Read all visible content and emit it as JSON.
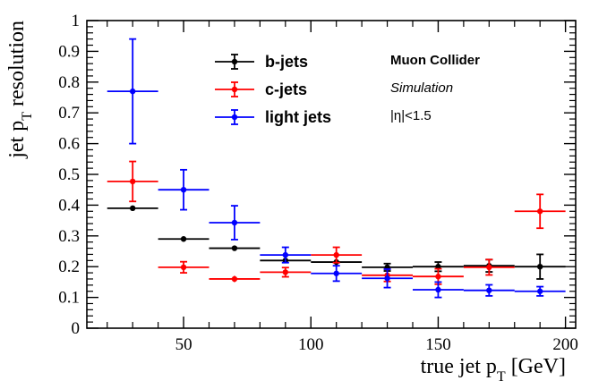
{
  "chart_data": {
    "type": "scatter",
    "title": "",
    "xlabel": {
      "prefix": "true jet p",
      "sub": "T",
      "suffix": " [GeV]"
    },
    "ylabel": {
      "prefix": "jet p",
      "sub": "T",
      "suffix": " resolution"
    },
    "xlim": [
      12,
      204
    ],
    "ylim": [
      0,
      1
    ],
    "xticks": [
      "50",
      "100",
      "150",
      "200"
    ],
    "yticks": [
      "0",
      "0.1",
      "0.2",
      "0.3",
      "0.4",
      "0.5",
      "0.6",
      "0.7",
      "0.8",
      "0.9",
      "1"
    ],
    "grid": false,
    "legend_position": "top-center",
    "series": [
      {
        "name": "b-jets",
        "color": "#000000",
        "points": [
          {
            "x": 30,
            "xerr": 10,
            "y": 0.39,
            "yerr": 0.007
          },
          {
            "x": 50,
            "xerr": 10,
            "y": 0.29,
            "yerr": 0.004
          },
          {
            "x": 70,
            "xerr": 10,
            "y": 0.26,
            "yerr": 0.005
          },
          {
            "x": 90,
            "xerr": 10,
            "y": 0.22,
            "yerr": 0.008
          },
          {
            "x": 110,
            "xerr": 10,
            "y": 0.215,
            "yerr": 0.01
          },
          {
            "x": 130,
            "xerr": 10,
            "y": 0.198,
            "yerr": 0.012
          },
          {
            "x": 150,
            "xerr": 10,
            "y": 0.2,
            "yerr": 0.015
          },
          {
            "x": 170,
            "xerr": 10,
            "y": 0.203,
            "yerr": 0.02
          },
          {
            "x": 190,
            "xerr": 10,
            "y": 0.2,
            "yerr": 0.04
          }
        ]
      },
      {
        "name": "c-jets",
        "color": "#ff0000",
        "points": [
          {
            "x": 30,
            "xerr": 10,
            "y": 0.477,
            "yerr": 0.065
          },
          {
            "x": 50,
            "xerr": 10,
            "y": 0.198,
            "yerr": 0.018
          },
          {
            "x": 70,
            "xerr": 10,
            "y": 0.16,
            "yerr": 0.01
          },
          {
            "x": 90,
            "xerr": 10,
            "y": 0.182,
            "yerr": 0.015
          },
          {
            "x": 110,
            "xerr": 10,
            "y": 0.238,
            "yerr": 0.025
          },
          {
            "x": 130,
            "xerr": 10,
            "y": 0.172,
            "yerr": 0.02
          },
          {
            "x": 150,
            "xerr": 10,
            "y": 0.168,
            "yerr": 0.025
          },
          {
            "x": 170,
            "xerr": 10,
            "y": 0.198,
            "yerr": 0.025
          },
          {
            "x": 190,
            "xerr": 10,
            "y": 0.38,
            "yerr": 0.055
          }
        ]
      },
      {
        "name": "light jets",
        "color": "#0000ff",
        "points": [
          {
            "x": 30,
            "xerr": 10,
            "y": 0.77,
            "yerr": 0.17
          },
          {
            "x": 50,
            "xerr": 10,
            "y": 0.45,
            "yerr": 0.065
          },
          {
            "x": 70,
            "xerr": 10,
            "y": 0.343,
            "yerr": 0.055
          },
          {
            "x": 90,
            "xerr": 10,
            "y": 0.238,
            "yerr": 0.025
          },
          {
            "x": 110,
            "xerr": 10,
            "y": 0.178,
            "yerr": 0.025
          },
          {
            "x": 130,
            "xerr": 10,
            "y": 0.162,
            "yerr": 0.03
          },
          {
            "x": 150,
            "xerr": 10,
            "y": 0.125,
            "yerr": 0.025
          },
          {
            "x": 170,
            "xerr": 10,
            "y": 0.123,
            "yerr": 0.018
          },
          {
            "x": 190,
            "xerr": 10,
            "y": 0.12,
            "yerr": 0.015
          }
        ]
      }
    ],
    "annotations": {
      "experiment": "Muon Collider",
      "status": "Simulation",
      "cut": "|η|<1.5"
    }
  }
}
